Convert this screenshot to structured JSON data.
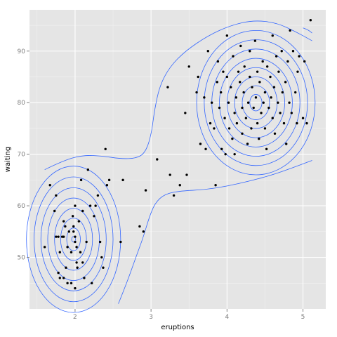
{
  "chart_data": {
    "type": "scatter",
    "title": "",
    "xlabel": "eruptions",
    "ylabel": "waiting",
    "xlim": [
      1.4,
      5.3
    ],
    "ylim": [
      40,
      98
    ],
    "x_ticks": [
      2,
      3,
      4,
      5
    ],
    "y_ticks": [
      50,
      60,
      70,
      80,
      90
    ],
    "x_tick_labels": [
      "2",
      "3",
      "4",
      "5"
    ],
    "y_tick_labels": [
      "50",
      "60",
      "70",
      "80",
      "90"
    ],
    "grid": true,
    "background_color": "#e5e5e5",
    "grid_color": "#ffffff",
    "point_color": "#000000",
    "contour_color": "#3366ff",
    "legend": "none",
    "points": [
      [
        1.6,
        52
      ],
      [
        1.67,
        64
      ],
      [
        1.75,
        62
      ],
      [
        1.73,
        59
      ],
      [
        1.75,
        54
      ],
      [
        1.78,
        54
      ],
      [
        1.78,
        47
      ],
      [
        1.8,
        46
      ],
      [
        1.8,
        51
      ],
      [
        1.83,
        54
      ],
      [
        1.85,
        57
      ],
      [
        1.85,
        54
      ],
      [
        1.85,
        46
      ],
      [
        1.87,
        56
      ],
      [
        1.88,
        48
      ],
      [
        1.9,
        45
      ],
      [
        1.9,
        52
      ],
      [
        1.92,
        55
      ],
      [
        1.95,
        51
      ],
      [
        1.95,
        45
      ],
      [
        1.97,
        58
      ],
      [
        1.98,
        56
      ],
      [
        1.98,
        55
      ],
      [
        2.0,
        54
      ],
      [
        2.0,
        53
      ],
      [
        2.0,
        44
      ],
      [
        2.0,
        60
      ],
      [
        2.02,
        49
      ],
      [
        2.02,
        52
      ],
      [
        2.03,
        48
      ],
      [
        2.05,
        57
      ],
      [
        2.07,
        51
      ],
      [
        2.08,
        65
      ],
      [
        2.1,
        59
      ],
      [
        2.1,
        49
      ],
      [
        2.12,
        46
      ],
      [
        2.15,
        53
      ],
      [
        2.17,
        67
      ],
      [
        2.2,
        60
      ],
      [
        2.22,
        45
      ],
      [
        2.25,
        58
      ],
      [
        2.27,
        60
      ],
      [
        2.3,
        62
      ],
      [
        2.33,
        53
      ],
      [
        2.35,
        50
      ],
      [
        2.37,
        48
      ],
      [
        2.4,
        71
      ],
      [
        2.42,
        64
      ],
      [
        2.45,
        65
      ],
      [
        2.6,
        53
      ],
      [
        2.63,
        65
      ],
      [
        2.85,
        56
      ],
      [
        2.9,
        55
      ],
      [
        2.93,
        63
      ],
      [
        3.08,
        69
      ],
      [
        3.22,
        83
      ],
      [
        3.25,
        66
      ],
      [
        3.3,
        62
      ],
      [
        3.38,
        64
      ],
      [
        3.45,
        78
      ],
      [
        3.47,
        66
      ],
      [
        3.5,
        87
      ],
      [
        3.6,
        82
      ],
      [
        3.62,
        85
      ],
      [
        3.65,
        72
      ],
      [
        3.7,
        81
      ],
      [
        3.72,
        71
      ],
      [
        3.75,
        90
      ],
      [
        3.78,
        76
      ],
      [
        3.8,
        80
      ],
      [
        3.83,
        75
      ],
      [
        3.85,
        64
      ],
      [
        3.87,
        84
      ],
      [
        3.88,
        88
      ],
      [
        3.9,
        79
      ],
      [
        3.92,
        82
      ],
      [
        3.93,
        71
      ],
      [
        3.95,
        86
      ],
      [
        3.97,
        77
      ],
      [
        3.98,
        70
      ],
      [
        4.0,
        93
      ],
      [
        4.0,
        85
      ],
      [
        4.02,
        80
      ],
      [
        4.03,
        75
      ],
      [
        4.05,
        83
      ],
      [
        4.07,
        73
      ],
      [
        4.08,
        89
      ],
      [
        4.1,
        78
      ],
      [
        4.1,
        70
      ],
      [
        4.12,
        81
      ],
      [
        4.13,
        76
      ],
      [
        4.15,
        86
      ],
      [
        4.17,
        84
      ],
      [
        4.18,
        91
      ],
      [
        4.2,
        79
      ],
      [
        4.2,
        74
      ],
      [
        4.22,
        82
      ],
      [
        4.23,
        87
      ],
      [
        4.25,
        77
      ],
      [
        4.27,
        72
      ],
      [
        4.28,
        80
      ],
      [
        4.3,
        85
      ],
      [
        4.3,
        90
      ],
      [
        4.32,
        75
      ],
      [
        4.33,
        83
      ],
      [
        4.35,
        79
      ],
      [
        4.37,
        92
      ],
      [
        4.38,
        81
      ],
      [
        4.4,
        76
      ],
      [
        4.4,
        86
      ],
      [
        4.42,
        73
      ],
      [
        4.43,
        84
      ],
      [
        4.45,
        78
      ],
      [
        4.47,
        88
      ],
      [
        4.48,
        80
      ],
      [
        4.5,
        82
      ],
      [
        4.5,
        75
      ],
      [
        4.52,
        71
      ],
      [
        4.53,
        87
      ],
      [
        4.55,
        79
      ],
      [
        4.57,
        85
      ],
      [
        4.58,
        81
      ],
      [
        4.6,
        93
      ],
      [
        4.6,
        77
      ],
      [
        4.62,
        83
      ],
      [
        4.63,
        74
      ],
      [
        4.65,
        89
      ],
      [
        4.67,
        80
      ],
      [
        4.68,
        86
      ],
      [
        4.7,
        78
      ],
      [
        4.72,
        90
      ],
      [
        4.73,
        82
      ],
      [
        4.75,
        76
      ],
      [
        4.77,
        84
      ],
      [
        4.78,
        72
      ],
      [
        4.8,
        88
      ],
      [
        4.82,
        80
      ],
      [
        4.83,
        94
      ],
      [
        4.85,
        78
      ],
      [
        4.87,
        90
      ],
      [
        4.9,
        82
      ],
      [
        4.92,
        76
      ],
      [
        4.93,
        86
      ],
      [
        4.95,
        89
      ],
      [
        5.0,
        77
      ],
      [
        5.02,
        88
      ],
      [
        5.05,
        76
      ],
      [
        5.1,
        96
      ]
    ],
    "contours": [
      {
        "shape": "ellipse",
        "cx": 1.98,
        "cy": 53.5,
        "radii": [
          [
            0.025,
            0.55
          ],
          [
            0.09,
            2.2
          ],
          [
            0.17,
            4.1
          ],
          [
            0.25,
            6.0
          ],
          [
            0.34,
            8.0
          ],
          [
            0.43,
            10.0
          ],
          [
            0.52,
            12.1
          ],
          [
            0.62,
            14.2
          ]
        ]
      },
      {
        "shape": "ellipse",
        "cx": 4.38,
        "cy": 80.0,
        "radii": [
          [
            0.08,
            1.6
          ],
          [
            0.18,
            3.3
          ],
          [
            0.28,
            5.0
          ],
          [
            0.38,
            6.8
          ],
          [
            0.48,
            8.6
          ],
          [
            0.58,
            10.4
          ],
          [
            0.68,
            12.2
          ],
          [
            0.78,
            14.0
          ]
        ]
      },
      {
        "shape": "path",
        "points": [
          [
            1.6,
            67
          ],
          [
            1.85,
            68.8
          ],
          [
            2.1,
            69.8
          ],
          [
            2.35,
            69.7
          ],
          [
            2.6,
            69.1
          ],
          [
            2.8,
            69.2
          ],
          [
            2.92,
            70.2
          ],
          [
            3.0,
            73.5
          ],
          [
            3.05,
            79
          ],
          [
            3.12,
            83.5
          ],
          [
            3.25,
            87
          ],
          [
            3.45,
            90
          ],
          [
            3.75,
            93
          ],
          [
            4.05,
            95
          ],
          [
            4.35,
            96
          ],
          [
            4.65,
            95.5
          ],
          [
            4.9,
            93.8
          ],
          [
            5.12,
            92
          ]
        ]
      },
      {
        "shape": "path",
        "points": [
          [
            2.57,
            41
          ],
          [
            2.68,
            45
          ],
          [
            2.8,
            50
          ],
          [
            2.9,
            54
          ],
          [
            2.97,
            57.5
          ],
          [
            3.05,
            60.5
          ],
          [
            3.18,
            62.3
          ],
          [
            3.4,
            62.9
          ],
          [
            3.7,
            63.1
          ],
          [
            4.0,
            63.8
          ],
          [
            4.3,
            64.8
          ],
          [
            4.6,
            66
          ],
          [
            4.85,
            67.3
          ],
          [
            5.12,
            68.8
          ]
        ]
      },
      {
        "shape": "path",
        "points": [
          [
            5.0,
            94.5
          ],
          [
            5.06,
            94.2
          ],
          [
            5.12,
            93.5
          ]
        ]
      }
    ]
  }
}
